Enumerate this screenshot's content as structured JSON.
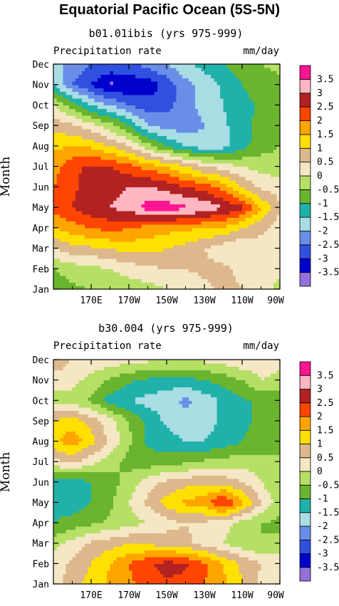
{
  "figure_title": "Equatorial Pacific Ocean (5S-5N)",
  "colors": {
    "levels": [
      "#9370db",
      "#0000cd",
      "#3050e0",
      "#6a8ee8",
      "#a8dde4",
      "#20b2aa",
      "#6ab42e",
      "#b5e065",
      "#f5e6c4",
      "#dcb88c",
      "#ffe000",
      "#ffa500",
      "#ff4500",
      "#b22222",
      "#ffb6c1",
      "#ff1493"
    ]
  },
  "chart_data": [
    {
      "type": "heatmap",
      "title": "b01.01ibis (yrs 975-999)",
      "left_label": "Precipitation rate",
      "right_label": "mm/day",
      "ylabel": "Month",
      "months": [
        "Jan",
        "Feb",
        "Mar",
        "Apr",
        "May",
        "Jun",
        "Jul",
        "Aug",
        "Sep",
        "Oct",
        "Nov",
        "Dec"
      ],
      "xticks": [
        "170E",
        "170W",
        "150W",
        "130W",
        "110W",
        "90W"
      ],
      "colorbar_labels": [
        "3.5",
        "3",
        "2.5",
        "2",
        "1.5",
        "1",
        "0.5",
        "0",
        "-0.5",
        "-1",
        "-1.5",
        "-2",
        "-2.5",
        "-3",
        "-3.5"
      ],
      "grid_longitudes": [
        "150E",
        "160E",
        "170E",
        "180",
        "170W",
        "160W",
        "150W",
        "140W",
        "130W",
        "120W",
        "110W",
        "100W",
        "90W"
      ],
      "values": [
        [
          -0.8,
          -0.6,
          -0.5,
          -0.4,
          -0.3,
          -0.2,
          0.0,
          0.2,
          0.4,
          0.6,
          0.5,
          0.3,
          -0.2
        ],
        [
          -0.5,
          -0.3,
          -0.2,
          0.0,
          0.2,
          0.4,
          0.5,
          0.5,
          0.6,
          0.6,
          0.4,
          0.3,
          0.1
        ],
        [
          0.5,
          0.8,
          0.9,
          1.0,
          1.2,
          1.2,
          1.0,
          0.8,
          0.5,
          0.2,
          0.0,
          0.3,
          0.4
        ],
        [
          1.5,
          1.8,
          2.0,
          2.2,
          2.0,
          1.8,
          1.7,
          1.6,
          1.5,
          1.4,
          1.0,
          0.6,
          0.3
        ],
        [
          2.2,
          2.5,
          2.9,
          3.0,
          3.2,
          3.7,
          3.8,
          3.6,
          3.4,
          3.0,
          2.6,
          1.5,
          0.5
        ],
        [
          2.0,
          2.4,
          2.7,
          2.8,
          3.0,
          3.1,
          2.8,
          2.5,
          2.3,
          1.8,
          1.0,
          0.4,
          0.3
        ],
        [
          1.8,
          2.4,
          2.6,
          2.5,
          2.2,
          1.8,
          1.5,
          1.0,
          0.5,
          0.3,
          0.0,
          -0.2,
          -0.3
        ],
        [
          1.4,
          1.5,
          1.4,
          1.0,
          0.5,
          -0.3,
          -1.0,
          -1.5,
          -1.8,
          -1.7,
          -1.2,
          -0.7,
          -0.5
        ],
        [
          0.8,
          0.6,
          0.2,
          -0.3,
          -1.0,
          -2.0,
          -2.2,
          -2.3,
          -2.0,
          -1.6,
          -1.2,
          -0.8,
          -0.5
        ],
        [
          0.0,
          -0.7,
          -1.5,
          -2.0,
          -2.5,
          -2.8,
          -2.7,
          -2.2,
          -1.8,
          -1.5,
          -1.2,
          -0.9,
          -0.6
        ],
        [
          -1.5,
          -2.5,
          -3.0,
          -3.6,
          -3.4,
          -3.3,
          -2.8,
          -2.2,
          -1.8,
          -1.4,
          -1.0,
          -0.7,
          -0.6
        ],
        [
          -1.8,
          -2.2,
          -2.5,
          -2.6,
          -2.6,
          -2.3,
          -2.0,
          -1.6,
          -1.3,
          -1.0,
          -0.7,
          -0.5,
          -0.4
        ]
      ]
    },
    {
      "type": "heatmap",
      "title": "b30.004 (yrs 975-999)",
      "left_label": "Precipitation rate",
      "right_label": "mm/day",
      "ylabel": "Month",
      "months": [
        "Jan",
        "Feb",
        "Mar",
        "Apr",
        "May",
        "Jun",
        "Jul",
        "Aug",
        "Sep",
        "Oct",
        "Nov",
        "Dec"
      ],
      "xticks": [
        "170E",
        "170W",
        "150W",
        "130W",
        "110W",
        "90W"
      ],
      "colorbar_labels": [
        "3.5",
        "3",
        "2.5",
        "2",
        "1.5",
        "1",
        "0.5",
        "0",
        "-0.5",
        "-1",
        "-1.5",
        "-2",
        "-2.5",
        "-3",
        "-3.5"
      ],
      "grid_longitudes": [
        "150E",
        "160E",
        "170E",
        "180",
        "170W",
        "160W",
        "150W",
        "140W",
        "130W",
        "120W",
        "110W",
        "100W",
        "90W"
      ],
      "values": [
        [
          0.3,
          0.8,
          1.2,
          1.6,
          1.9,
          2.2,
          2.4,
          2.3,
          2.0,
          1.6,
          1.0,
          0.4,
          0.2
        ],
        [
          0.2,
          0.6,
          1.0,
          1.5,
          2.0,
          2.4,
          2.7,
          2.6,
          2.1,
          1.5,
          0.9,
          0.5,
          0.3
        ],
        [
          -0.2,
          0.2,
          0.6,
          0.8,
          1.0,
          0.9,
          0.8,
          0.6,
          0.3,
          0.0,
          -0.3,
          -0.5,
          -0.4
        ],
        [
          -1.0,
          -0.8,
          -0.6,
          -0.4,
          -0.2,
          0.0,
          0.3,
          0.5,
          0.4,
          0.2,
          -0.2,
          -0.5,
          -0.6
        ],
        [
          -1.2,
          -1.3,
          -1.0,
          -0.6,
          0.0,
          0.6,
          1.2,
          1.6,
          1.8,
          2.6,
          1.6,
          0.5,
          -0.3
        ],
        [
          -1.2,
          -1.3,
          -1.0,
          -0.7,
          -0.3,
          0.3,
          0.6,
          0.8,
          0.9,
          0.8,
          0.5,
          0.0,
          -0.4
        ],
        [
          0.3,
          0.6,
          0.2,
          -0.3,
          -0.7,
          -0.8,
          -0.7,
          -0.6,
          -0.4,
          -0.3,
          -0.2,
          -0.3,
          -0.4
        ],
        [
          1.4,
          1.8,
          1.2,
          0.4,
          -0.4,
          -1.1,
          -1.3,
          -1.5,
          -1.5,
          -1.3,
          -1.0,
          -0.8,
          -0.8
        ],
        [
          1.0,
          1.3,
          0.8,
          0.2,
          -0.5,
          -1.1,
          -1.6,
          -1.8,
          -1.7,
          -1.4,
          -1.1,
          -0.9,
          -0.8
        ],
        [
          -0.2,
          -0.3,
          -0.6,
          -1.2,
          -1.5,
          -1.7,
          -1.8,
          -2.1,
          -1.8,
          -1.4,
          -1.1,
          -0.9,
          -0.8
        ],
        [
          0.3,
          0.2,
          -0.2,
          -0.6,
          -0.9,
          -1.1,
          -1.2,
          -1.2,
          -1.0,
          -0.8,
          -0.5,
          0.0,
          -0.2
        ],
        [
          0.8,
          0.5,
          0.4,
          0.3,
          0.2,
          0.1,
          0.0,
          0.0,
          0.1,
          0.2,
          0.4,
          0.3,
          0.2
        ]
      ]
    }
  ]
}
